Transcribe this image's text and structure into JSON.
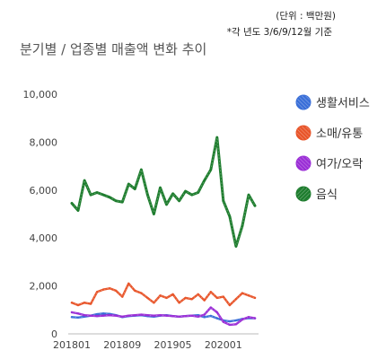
{
  "notes": {
    "unit": "(단위 : 백만원)",
    "basis": "*각 년도 3/6/9/12월 기준"
  },
  "title": "분기별 / 업종별 매출액 변화 추이",
  "chart_data": {
    "type": "line",
    "title": "분기별 / 업종별 매출액 변화 추이",
    "ylim": [
      0,
      10000
    ],
    "yticks": [
      0,
      2000,
      4000,
      6000,
      8000,
      10000
    ],
    "ytick_labels": [
      "0",
      "2,000",
      "4,000",
      "6,000",
      "8,000",
      "10,000"
    ],
    "xtick_labels": [
      "201801",
      "201809",
      "201905",
      "202001"
    ],
    "xtick_index": [
      0,
      8,
      16,
      24
    ],
    "legend_position": "right",
    "grid": false,
    "series": [
      {
        "name": "생활서비스",
        "color": "#3a6fd8",
        "values": [
          700,
          680,
          720,
          760,
          820,
          850,
          830,
          780,
          700,
          740,
          760,
          780,
          740,
          720,
          760,
          780,
          740,
          720,
          740,
          760,
          780,
          700,
          750,
          650,
          560,
          520,
          560,
          620,
          660,
          650
        ]
      },
      {
        "name": "소매/유통",
        "color": "#e8552a",
        "values": [
          1300,
          1200,
          1300,
          1250,
          1750,
          1850,
          1900,
          1800,
          1550,
          2100,
          1800,
          1700,
          1500,
          1300,
          1600,
          1500,
          1650,
          1300,
          1500,
          1450,
          1650,
          1400,
          1750,
          1500,
          1550,
          1200,
          1450,
          1700,
          1600,
          1500
        ]
      },
      {
        "name": "여가/오락",
        "color": "#9b2fd6",
        "values": [
          900,
          850,
          780,
          760,
          740,
          760,
          780,
          760,
          720,
          760,
          780,
          800,
          780,
          760,
          780,
          760,
          740,
          720,
          740,
          760,
          720,
          800,
          1100,
          900,
          500,
          380,
          400,
          600,
          700,
          650
        ]
      },
      {
        "name": "음식",
        "color": "#1e7d2e",
        "values": [
          5450,
          5150,
          6400,
          5800,
          5900,
          5800,
          5700,
          5550,
          5500,
          6250,
          6050,
          6850,
          5800,
          5000,
          6100,
          5400,
          5850,
          5550,
          5950,
          5800,
          5900,
          6400,
          6850,
          8200,
          5550,
          4900,
          3650,
          4500,
          5800,
          5350
        ]
      }
    ]
  }
}
